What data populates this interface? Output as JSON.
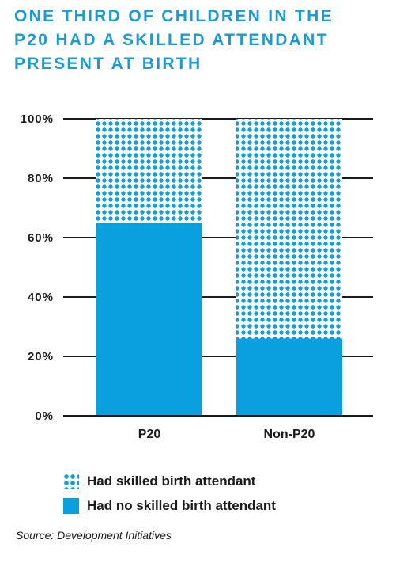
{
  "title": "ONE THIRD OF CHILDREN IN THE\nP20 HAD A SKILLED ATTENDANT\nPRESENT AT  BIRTH",
  "colors": {
    "title": "#1a9bd7",
    "bar": "#0aa0e0",
    "text": "#1a1a1a"
  },
  "chart_data": {
    "type": "bar",
    "stacked": true,
    "categories": [
      "P20",
      "Non-P20"
    ],
    "series": [
      {
        "name": "Had no skilled birth attendant",
        "values": [
          65,
          26
        ],
        "pattern": "solid"
      },
      {
        "name": "Had skilled birth attendant",
        "values": [
          35,
          74
        ],
        "pattern": "dots"
      }
    ],
    "ylim": [
      0,
      100
    ],
    "yticks": [
      0,
      20,
      40,
      60,
      80,
      100
    ],
    "ytick_labels": [
      "0%",
      "20%",
      "40%",
      "60%",
      "80%",
      "100%"
    ],
    "grid": true,
    "legend_position": "bottom-left"
  },
  "legend": [
    {
      "label": "Had skilled birth attendant",
      "pattern": "dots"
    },
    {
      "label": "Had no skilled birth attendant",
      "pattern": "solid"
    }
  ],
  "source": "Source: Development Initiatives"
}
